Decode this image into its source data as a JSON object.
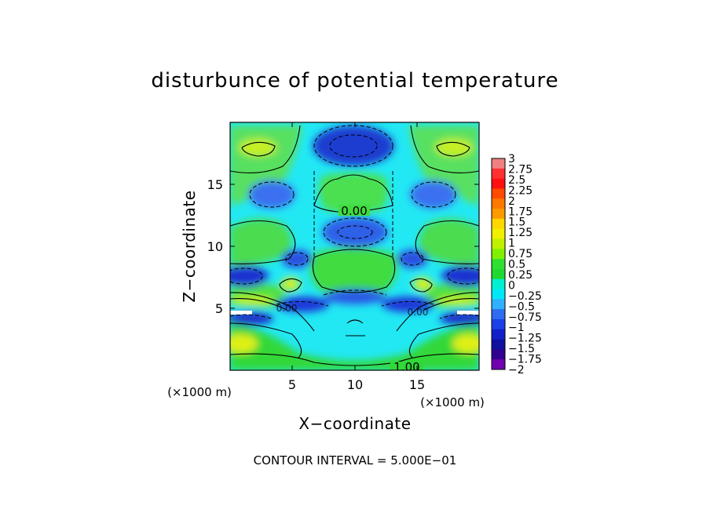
{
  "chart_data": {
    "type": "contour",
    "title": "disturbunce of potential temperature",
    "xlabel": "X−coordinate",
    "ylabel": "Z−coordinate",
    "x_unit": "(×1000 m)",
    "y_unit": "(×1000 m)",
    "x_range": [
      0,
      20
    ],
    "y_range": [
      0,
      20
    ],
    "x_ticks": [
      5,
      10,
      15
    ],
    "y_ticks": [
      5,
      10,
      15
    ],
    "x_tick_labels": [
      "5",
      "10",
      "15"
    ],
    "y_tick_labels": [
      "5",
      "10",
      "15"
    ],
    "contour_interval_text": "CONTOUR INTERVAL = 5.000E−01",
    "contour_labels": [
      "0.00",
      "1.00",
      "0.00",
      "0.00"
    ],
    "colorbar": {
      "levels": [
        3,
        2.75,
        2.5,
        2.25,
        2,
        1.75,
        1.5,
        1.25,
        1,
        0.75,
        0.5,
        0.25,
        0,
        -0.25,
        -0.5,
        -0.75,
        -1,
        -1.25,
        -1.5,
        -1.75,
        -2
      ],
      "labels": [
        "3",
        "2.75",
        "2.5",
        "2.25",
        "2",
        "1.75",
        "1.5",
        "1.25",
        "1",
        "0.75",
        "0.5",
        "0.25",
        "0",
        "−0.25",
        "−0.5",
        "−0.75",
        "−1",
        "−1.25",
        "−1.5",
        "−1.75",
        "−2"
      ],
      "colors": [
        "#f08080",
        "#ff3030",
        "#ff1010",
        "#ff4a00",
        "#ff7800",
        "#ff9a00",
        "#ffd800",
        "#f0f000",
        "#c0f000",
        "#80f000",
        "#30e030",
        "#20d830",
        "#00f0d0",
        "#00e8f8",
        "#30b0ff",
        "#2e6cf0",
        "#1a40e8",
        "#1020c8",
        "#1010a0",
        "#300090",
        "#7000b0"
      ]
    }
  }
}
